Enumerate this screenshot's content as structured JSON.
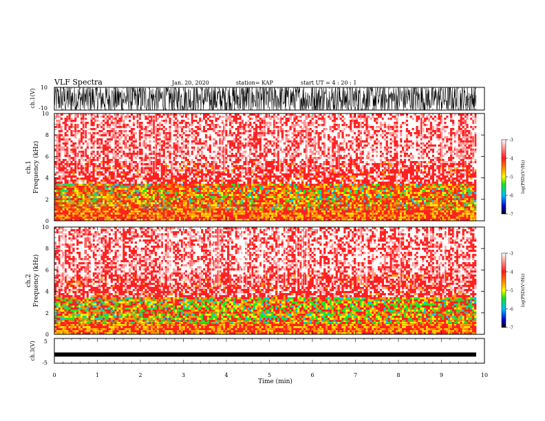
{
  "header": {
    "title": "VLF Spectra",
    "date": "Jan. 20, 2020",
    "station": "station= KAP",
    "start": "start  UT =   4 : 20 : 1"
  },
  "chart_data": [
    {
      "type": "line",
      "title": "",
      "ylabel": "ch.1(V)",
      "ylim": [
        -10,
        10
      ],
      "ytick_labels": [
        "10",
        "-10"
      ],
      "xlim": [
        0,
        10
      ],
      "description_series": "dense waveform saturating between -10 and 10"
    },
    {
      "type": "heatmap",
      "ylabel": "ch.1\nFrequency (kHz)",
      "ylabel_lines": [
        "ch.1",
        "Frequency  (kHz)"
      ],
      "ylim": [
        0,
        10
      ],
      "yticks": [
        "0",
        "2",
        "4",
        "6",
        "8",
        "10"
      ],
      "xlim": [
        0,
        10
      ],
      "colorbar": {
        "label": "log(PSD)(V²/Hz)",
        "range": [
          -7,
          -3
        ],
        "ticks": [
          "-3",
          "-4",
          "-5",
          "-6",
          "-7"
        ]
      }
    },
    {
      "type": "heatmap",
      "ylabel_lines": [
        "ch.2",
        "Frequency  (kHz)"
      ],
      "ylim": [
        0,
        10
      ],
      "yticks": [
        "0",
        "2",
        "4",
        "6",
        "8",
        "10"
      ],
      "xlim": [
        0,
        10
      ],
      "colorbar": {
        "label": "log(PSD)(V²/Hz)",
        "range": [
          -7,
          -3
        ],
        "ticks": [
          "-3",
          "-4",
          "-5",
          "-6",
          "-7"
        ]
      }
    },
    {
      "type": "line",
      "ylabel": "ch.3(V)",
      "ylim": [
        -5,
        5
      ],
      "ytick_labels": [
        "5",
        "-5"
      ],
      "xlim": [
        0,
        10
      ],
      "level": -1.5
    }
  ],
  "xaxis": {
    "label": "Time (min)",
    "ticks": [
      "0",
      "1",
      "2",
      "3",
      "4",
      "5",
      "6",
      "7",
      "8",
      "9",
      "10"
    ]
  },
  "colors": {
    "scale": [
      "#ffffff",
      "#ff2020",
      "#ff9a00",
      "#ffff00",
      "#20e020",
      "#00c0ff",
      "#0000c0",
      "#000000"
    ]
  }
}
